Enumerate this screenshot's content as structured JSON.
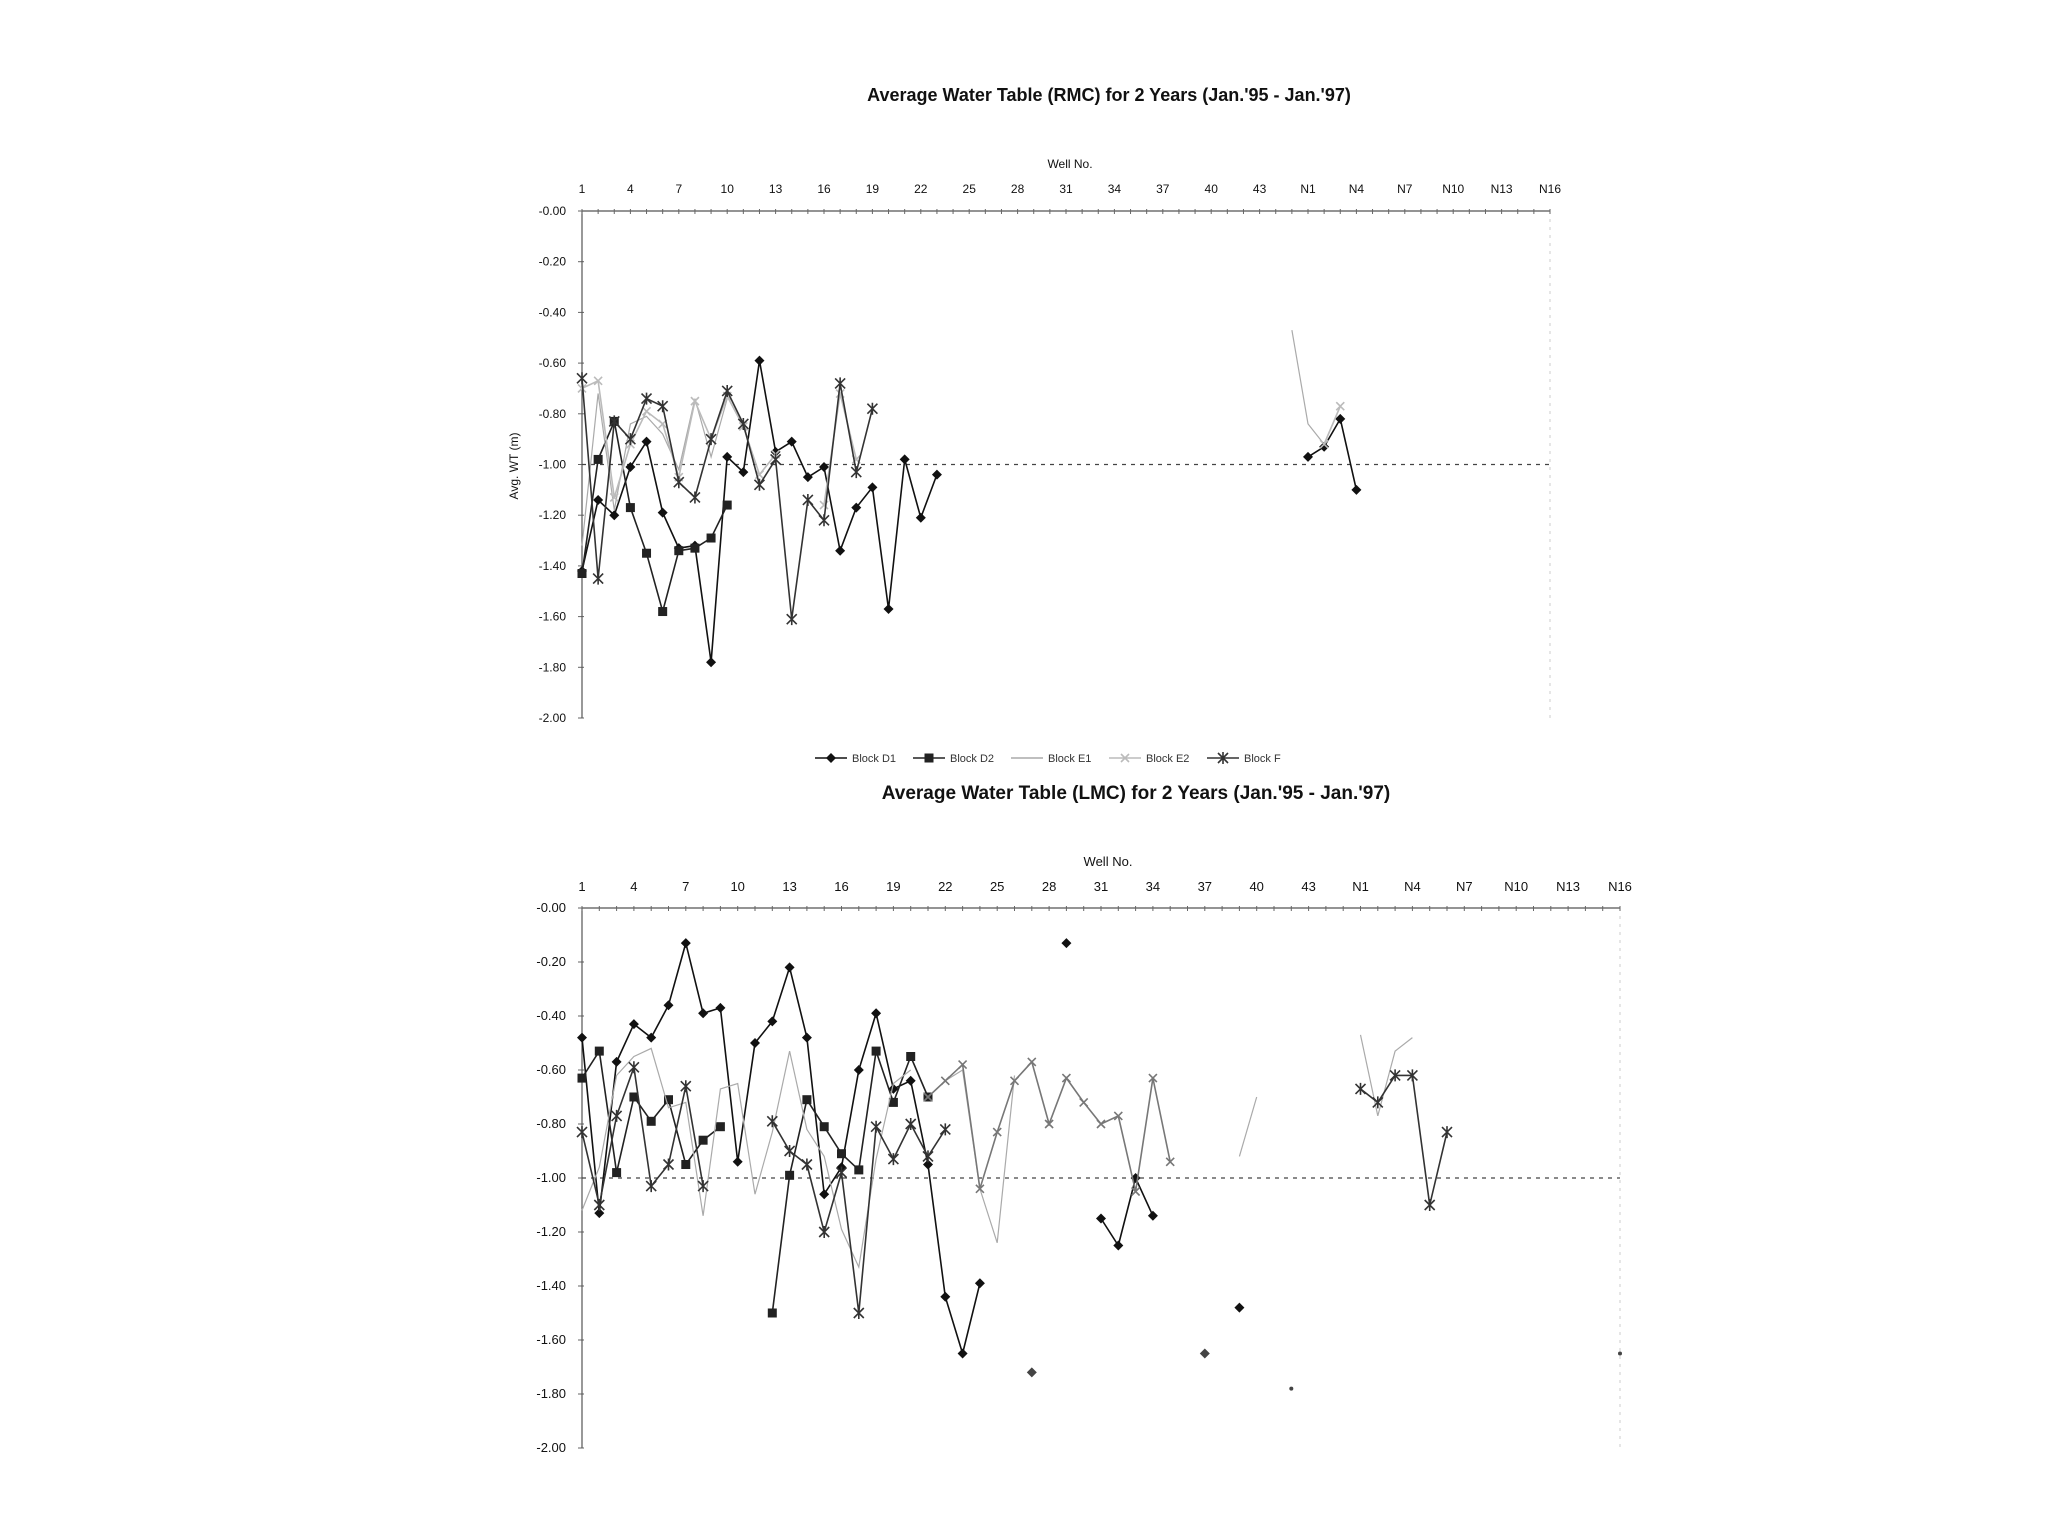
{
  "chart_data": [
    {
      "type": "line",
      "title": "Average Water Table (RMC) for 2 Years (Jan.'95 - Jan.'97)",
      "xlabel": "Well No.",
      "ylabel": "Avg. WT (m)",
      "x_tick_labels": [
        "1",
        "4",
        "7",
        "10",
        "13",
        "16",
        "19",
        "22",
        "25",
        "28",
        "31",
        "34",
        "37",
        "40",
        "43",
        "N1",
        "N4",
        "N7",
        "N10",
        "N13",
        "N16"
      ],
      "y_ticks": [
        "-0.00",
        "-0.20",
        "-0.40",
        "-0.60",
        "-0.80",
        "-1.00",
        "-1.20",
        "-1.40",
        "-1.60",
        "-1.80",
        "-2.00"
      ],
      "ylim": [
        -2.0,
        0.0
      ],
      "x_positions": 61,
      "reference_line": -1.0,
      "legend_position": "bottom",
      "series": [
        {
          "name": "Block D1",
          "marker": "diamond",
          "color": "#111111",
          "points": [
            [
              0,
              -1.42
            ],
            [
              1,
              -1.14
            ],
            [
              2,
              -1.2
            ],
            [
              3,
              -1.01
            ],
            [
              4,
              -0.91
            ],
            [
              5,
              -1.19
            ],
            [
              6,
              -1.33
            ],
            [
              7,
              -1.32
            ],
            [
              8,
              -1.78
            ],
            [
              9,
              -0.97
            ],
            [
              10,
              -1.03
            ],
            [
              11,
              -0.59
            ],
            [
              12,
              -0.95
            ],
            [
              13,
              -0.91
            ],
            [
              14,
              -1.05
            ],
            [
              15,
              -1.01
            ],
            [
              16,
              -1.34
            ],
            [
              17,
              -1.17
            ],
            [
              18,
              -1.09
            ],
            [
              19,
              -1.57
            ],
            [
              20,
              -0.98
            ],
            [
              21,
              -1.21
            ],
            [
              22,
              -1.04
            ],
            [
              45,
              -0.97
            ],
            [
              46,
              -0.93
            ],
            [
              47,
              -0.82
            ],
            [
              48,
              -1.1
            ]
          ]
        },
        {
          "name": "Block D2",
          "marker": "square",
          "color": "#222222",
          "points": [
            [
              0,
              -1.43
            ],
            [
              1,
              -0.98
            ],
            [
              2,
              -0.83
            ],
            [
              3,
              -1.17
            ],
            [
              4,
              -1.35
            ],
            [
              5,
              -1.58
            ],
            [
              6,
              -1.34
            ],
            [
              7,
              -1.33
            ],
            [
              8,
              -1.29
            ],
            [
              9,
              -1.16
            ]
          ]
        },
        {
          "name": "Block E1",
          "marker": "none",
          "color": "#aaaaaa",
          "points": [
            [
              0,
              -1.32
            ],
            [
              1,
              -0.72
            ],
            [
              2,
              -1.18
            ],
            [
              3,
              -0.84
            ],
            [
              4,
              -0.81
            ],
            [
              5,
              -0.88
            ],
            [
              6,
              -1.02
            ],
            [
              7,
              -0.74
            ],
            [
              8,
              -0.97
            ],
            [
              9,
              -0.74
            ],
            [
              44,
              -0.47
            ],
            [
              45,
              -0.84
            ],
            [
              46,
              -0.92
            ],
            [
              47,
              -0.77
            ]
          ]
        },
        {
          "name": "Block E2",
          "marker": "x",
          "color": "#bbbbbb",
          "points": [
            [
              0,
              -0.7
            ],
            [
              1,
              -0.67
            ],
            [
              2,
              -1.13
            ],
            [
              3,
              -0.92
            ],
            [
              4,
              -0.79
            ],
            [
              5,
              -0.84
            ],
            [
              6,
              -1.05
            ],
            [
              7,
              -0.75
            ],
            [
              8,
              -0.9
            ],
            [
              9,
              -0.73
            ],
            [
              10,
              -0.85
            ],
            [
              11,
              -1.04
            ],
            [
              12,
              -0.96
            ],
            [
              15,
              -1.16
            ],
            [
              16,
              -0.72
            ],
            [
              17,
              -0.98
            ],
            [
              46,
              -0.92
            ],
            [
              47,
              -0.77
            ]
          ]
        },
        {
          "name": "Block F",
          "marker": "asterisk",
          "color": "#333333",
          "points": [
            [
              0,
              -0.66
            ],
            [
              1,
              -1.45
            ],
            [
              2,
              -0.83
            ],
            [
              3,
              -0.9
            ],
            [
              4,
              -0.74
            ],
            [
              5,
              -0.77
            ],
            [
              6,
              -1.07
            ],
            [
              7,
              -1.13
            ],
            [
              8,
              -0.9
            ],
            [
              9,
              -0.71
            ],
            [
              10,
              -0.84
            ],
            [
              11,
              -1.08
            ],
            [
              12,
              -0.98
            ],
            [
              13,
              -1.61
            ],
            [
              14,
              -1.14
            ],
            [
              15,
              -1.22
            ],
            [
              16,
              -0.68
            ],
            [
              17,
              -1.03
            ],
            [
              18,
              -0.78
            ]
          ]
        }
      ]
    },
    {
      "type": "line",
      "title": "Average Water Table (LMC) for 2 Years (Jan.'95 - Jan.'97)",
      "xlabel": "Well No.",
      "ylabel": "",
      "x_tick_labels": [
        "1",
        "4",
        "7",
        "10",
        "13",
        "16",
        "19",
        "22",
        "25",
        "28",
        "31",
        "34",
        "37",
        "40",
        "43",
        "N1",
        "N4",
        "N7",
        "N10",
        "N13",
        "N16"
      ],
      "y_ticks": [
        "-0.00",
        "-0.20",
        "-0.40",
        "-0.60",
        "-0.80",
        "-1.00",
        "-1.20",
        "-1.40",
        "-1.60",
        "-1.80",
        "-2.00"
      ],
      "ylim": [
        -2.0,
        0.0
      ],
      "x_positions": 61,
      "reference_line": -1.0,
      "legend_position": "bottom",
      "series": [
        {
          "name": "",
          "marker": "diamond",
          "color": "#111111",
          "points": [
            [
              0,
              -0.48
            ],
            [
              1,
              -1.13
            ],
            [
              2,
              -0.57
            ],
            [
              3,
              -0.43
            ],
            [
              4,
              -0.48
            ],
            [
              5,
              -0.36
            ],
            [
              6,
              -0.13
            ],
            [
              7,
              -0.39
            ],
            [
              8,
              -0.37
            ],
            [
              9,
              -0.94
            ],
            [
              10,
              -0.5
            ],
            [
              11,
              -0.42
            ],
            [
              12,
              -0.22
            ],
            [
              13,
              -0.48
            ],
            [
              14,
              -1.06
            ],
            [
              15,
              -0.96
            ],
            [
              16,
              -0.6
            ],
            [
              17,
              -0.39
            ],
            [
              18,
              -0.67
            ],
            [
              19,
              -0.64
            ],
            [
              20,
              -0.95
            ],
            [
              21,
              -1.44
            ],
            [
              22,
              -1.65
            ],
            [
              23,
              -1.39
            ],
            [
              28,
              -0.13
            ],
            [
              30,
              -1.15
            ],
            [
              31,
              -1.25
            ],
            [
              32,
              -1.0
            ],
            [
              33,
              -1.14
            ],
            [
              38,
              -1.48
            ]
          ]
        },
        {
          "name": "",
          "marker": "square",
          "color": "#222222",
          "points": [
            [
              0,
              -0.63
            ],
            [
              1,
              -0.53
            ],
            [
              2,
              -0.98
            ],
            [
              3,
              -0.7
            ],
            [
              4,
              -0.79
            ],
            [
              5,
              -0.71
            ],
            [
              6,
              -0.95
            ],
            [
              7,
              -0.86
            ],
            [
              8,
              -0.81
            ],
            [
              11,
              -1.5
            ],
            [
              12,
              -0.99
            ],
            [
              13,
              -0.71
            ],
            [
              14,
              -0.81
            ],
            [
              15,
              -0.91
            ],
            [
              16,
              -0.97
            ],
            [
              17,
              -0.53
            ],
            [
              18,
              -0.72
            ],
            [
              19,
              -0.55
            ],
            [
              20,
              -0.7
            ]
          ]
        },
        {
          "name": "",
          "marker": "none",
          "color": "#aaaaaa",
          "points": [
            [
              0,
              -1.12
            ],
            [
              1,
              -0.96
            ],
            [
              2,
              -0.62
            ],
            [
              3,
              -0.55
            ],
            [
              4,
              -0.52
            ],
            [
              5,
              -0.74
            ],
            [
              6,
              -0.72
            ],
            [
              7,
              -1.14
            ],
            [
              8,
              -0.67
            ],
            [
              9,
              -0.65
            ],
            [
              10,
              -1.06
            ],
            [
              11,
              -0.83
            ],
            [
              12,
              -0.53
            ],
            [
              13,
              -0.82
            ],
            [
              14,
              -0.92
            ],
            [
              15,
              -1.19
            ],
            [
              16,
              -1.33
            ],
            [
              17,
              -0.93
            ],
            [
              18,
              -0.65
            ],
            [
              19,
              -0.6
            ],
            [
              21,
              -0.64
            ],
            [
              22,
              -0.6
            ],
            [
              23,
              -1.04
            ],
            [
              24,
              -1.24
            ],
            [
              25,
              -0.62
            ],
            [
              38,
              -0.92
            ],
            [
              39,
              -0.7
            ],
            [
              45,
              -0.47
            ],
            [
              46,
              -0.77
            ],
            [
              47,
              -0.53
            ],
            [
              48,
              -0.48
            ]
          ]
        },
        {
          "name": "",
          "marker": "x",
          "color": "#777777",
          "points": [
            [
              20,
              -0.7
            ],
            [
              21,
              -0.64
            ],
            [
              22,
              -0.58
            ],
            [
              23,
              -1.04
            ],
            [
              24,
              -0.83
            ],
            [
              25,
              -0.64
            ],
            [
              26,
              -0.57
            ],
            [
              27,
              -0.8
            ],
            [
              28,
              -0.63
            ],
            [
              29,
              -0.72
            ],
            [
              30,
              -0.8
            ],
            [
              31,
              -0.77
            ],
            [
              32,
              -1.05
            ],
            [
              33,
              -0.63
            ],
            [
              34,
              -0.94
            ]
          ]
        },
        {
          "name": "",
          "marker": "asterisk",
          "color": "#333333",
          "points": [
            [
              0,
              -0.83
            ],
            [
              1,
              -1.1
            ],
            [
              2,
              -0.77
            ],
            [
              3,
              -0.59
            ],
            [
              4,
              -1.03
            ],
            [
              5,
              -0.95
            ],
            [
              6,
              -0.66
            ],
            [
              7,
              -1.03
            ],
            [
              11,
              -0.79
            ],
            [
              12,
              -0.9
            ],
            [
              13,
              -0.95
            ],
            [
              14,
              -1.2
            ],
            [
              15,
              -0.98
            ],
            [
              16,
              -1.5
            ],
            [
              17,
              -0.81
            ],
            [
              18,
              -0.93
            ],
            [
              19,
              -0.8
            ],
            [
              20,
              -0.92
            ],
            [
              21,
              -0.82
            ],
            [
              45,
              -0.67
            ],
            [
              46,
              -0.72
            ],
            [
              47,
              -0.62
            ],
            [
              48,
              -0.62
            ],
            [
              49,
              -1.1
            ],
            [
              50,
              -0.83
            ]
          ]
        }
      ],
      "stray_points": [
        [
          26,
          -1.72,
          "diamond"
        ],
        [
          36,
          -1.65,
          "diamond"
        ],
        [
          41,
          -1.78,
          "dot"
        ],
        [
          60,
          -1.65,
          "dot"
        ]
      ]
    }
  ],
  "legend_top": [
    "Block D1",
    "Block D2",
    "Block E1",
    "Block E2",
    "Block F"
  ]
}
